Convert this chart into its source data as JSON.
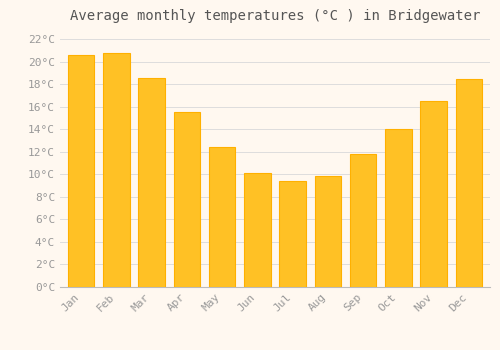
{
  "title": "Average monthly temperatures (°C ) in Bridgewater",
  "months": [
    "Jan",
    "Feb",
    "Mar",
    "Apr",
    "May",
    "Jun",
    "Jul",
    "Aug",
    "Sep",
    "Oct",
    "Nov",
    "Dec"
  ],
  "values": [
    20.6,
    20.8,
    18.6,
    15.5,
    12.4,
    10.1,
    9.4,
    9.9,
    11.8,
    14.0,
    16.5,
    18.5
  ],
  "bar_color_top": "#FFC125",
  "bar_color_bottom": "#FFB000",
  "background_color": "#FFF8F0",
  "plot_bg_color": "#FFF8F0",
  "grid_color": "#DDDDDD",
  "ytick_labels": [
    "0°C",
    "2°C",
    "4°C",
    "6°C",
    "8°C",
    "10°C",
    "12°C",
    "14°C",
    "16°C",
    "18°C",
    "20°C",
    "22°C"
  ],
  "ytick_values": [
    0,
    2,
    4,
    6,
    8,
    10,
    12,
    14,
    16,
    18,
    20,
    22
  ],
  "ylim": [
    0,
    23
  ],
  "title_fontsize": 10,
  "tick_fontsize": 8,
  "tick_color": "#999999",
  "title_color": "#555555",
  "bar_width": 0.75
}
